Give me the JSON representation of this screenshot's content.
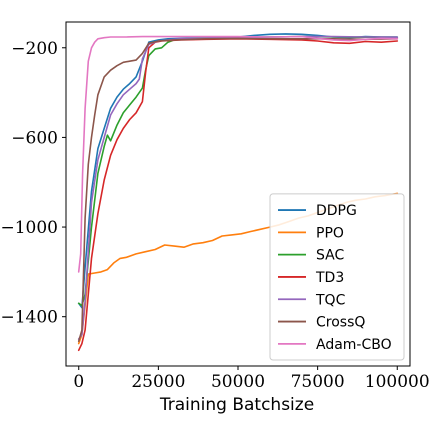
{
  "chart_data": {
    "type": "line",
    "title": "",
    "xlabel": "Training Batchsize",
    "ylabel": "",
    "xlim": [
      -4000,
      104000
    ],
    "ylim": [
      -1620,
      -85
    ],
    "xticks": [
      0,
      25000,
      50000,
      75000,
      100000
    ],
    "xtick_labels": [
      "0",
      "25000",
      "50000",
      "75000",
      "100000"
    ],
    "yticks": [
      -200,
      -600,
      -1000,
      -1400
    ],
    "ytick_labels": [
      "−200",
      "−600",
      "−1000",
      "−1400"
    ],
    "grid": false,
    "legend_position": "lower-right",
    "series": [
      {
        "name": "DDPG",
        "color": "#1f77b4",
        "x": [
          0,
          1000,
          2000,
          4000,
          6000,
          8000,
          10000,
          12000,
          14000,
          16000,
          18000,
          20000,
          22000,
          25000,
          28000,
          32000,
          40000,
          50000,
          55000,
          60000,
          65000,
          70000,
          75000,
          80000,
          85000,
          90000,
          95000,
          100000
        ],
        "y": [
          -1340,
          -1360,
          -1180,
          -840,
          -650,
          -560,
          -470,
          -420,
          -385,
          -360,
          -330,
          -260,
          -175,
          -165,
          -160,
          -158,
          -156,
          -152,
          -145,
          -140,
          -138,
          -140,
          -145,
          -152,
          -155,
          -150,
          -152,
          -152
        ]
      },
      {
        "name": "PPO",
        "color": "#ff7f0e",
        "x": [
          0,
          1000,
          2000,
          3000,
          5000,
          7000,
          9000,
          11000,
          13000,
          15000,
          18000,
          21000,
          24000,
          27000,
          30000,
          33000,
          36000,
          39000,
          42000,
          45000,
          48000,
          51000,
          54000,
          57000,
          60000,
          63000,
          66000,
          69000,
          72000,
          75000,
          78000,
          81000,
          84000,
          87000,
          90000,
          93000,
          96000,
          100000
        ],
        "y": [
          -1520,
          -1480,
          -1350,
          -1210,
          -1205,
          -1200,
          -1190,
          -1160,
          -1140,
          -1135,
          -1120,
          -1110,
          -1100,
          -1080,
          -1085,
          -1090,
          -1075,
          -1070,
          -1060,
          -1040,
          -1035,
          -1030,
          -1020,
          -1010,
          -1000,
          -990,
          -975,
          -960,
          -950,
          -935,
          -920,
          -905,
          -890,
          -880,
          -875,
          -865,
          -860,
          -850
        ]
      },
      {
        "name": "SAC",
        "color": "#2ca02c",
        "x": [
          0,
          1000,
          2000,
          4000,
          6000,
          8000,
          9000,
          10000,
          12000,
          14000,
          16000,
          18000,
          20000,
          21000,
          22000,
          24000,
          26000,
          28000,
          30000,
          35000,
          40000,
          50000,
          60000,
          70000,
          80000,
          90000,
          100000
        ],
        "y": [
          -1340,
          -1350,
          -1300,
          -1000,
          -760,
          -640,
          -590,
          -615,
          -545,
          -490,
          -455,
          -420,
          -380,
          -300,
          -235,
          -205,
          -200,
          -175,
          -165,
          -160,
          -158,
          -155,
          -152,
          -150,
          -152,
          -153,
          -153
        ]
      },
      {
        "name": "TD3",
        "color": "#d62728",
        "x": [
          0,
          1000,
          2000,
          4000,
          6000,
          8000,
          10000,
          12000,
          14000,
          16000,
          18000,
          20000,
          21000,
          22000,
          24000,
          26000,
          28000,
          32000,
          40000,
          50000,
          60000,
          70000,
          75000,
          80000,
          85000,
          90000,
          95000,
          100000
        ],
        "y": [
          -1550,
          -1520,
          -1460,
          -1140,
          -940,
          -790,
          -680,
          -610,
          -560,
          -520,
          -490,
          -440,
          -310,
          -200,
          -175,
          -170,
          -168,
          -165,
          -162,
          -160,
          -162,
          -165,
          -170,
          -178,
          -180,
          -172,
          -175,
          -170
        ]
      },
      {
        "name": "TQC",
        "color": "#9467bd",
        "x": [
          0,
          1000,
          2000,
          4000,
          6000,
          8000,
          10000,
          12000,
          14000,
          16000,
          18000,
          19000,
          20000,
          22000,
          25000,
          28000,
          32000,
          40000,
          50000,
          60000,
          70000,
          80000,
          90000,
          100000
        ],
        "y": [
          -1500,
          -1480,
          -1330,
          -890,
          -700,
          -600,
          -500,
          -450,
          -410,
          -385,
          -360,
          -340,
          -250,
          -185,
          -170,
          -165,
          -160,
          -158,
          -155,
          -152,
          -150,
          -150,
          -152,
          -153
        ]
      },
      {
        "name": "CrossQ",
        "color": "#8c564b",
        "x": [
          0,
          1000,
          2000,
          3000,
          4000,
          5000,
          6000,
          8000,
          10000,
          12000,
          14000,
          16000,
          18000,
          20000,
          22000,
          25000,
          30000,
          40000,
          50000,
          60000,
          70000,
          80000,
          90000,
          100000
        ],
        "y": [
          -1510,
          -1460,
          -960,
          -720,
          -600,
          -500,
          -410,
          -330,
          -300,
          -280,
          -265,
          -260,
          -255,
          -225,
          -180,
          -170,
          -165,
          -160,
          -158,
          -160,
          -160,
          -160,
          -162,
          -160
        ]
      },
      {
        "name": "Adam-CBO",
        "color": "#e377c2",
        "x": [
          0,
          600,
          1200,
          2000,
          3000,
          4000,
          5000,
          6000,
          8000,
          10000,
          15000,
          20000,
          30000,
          40000,
          50000,
          60000,
          70000,
          75000,
          80000,
          85000,
          90000,
          95000,
          100000
        ],
        "y": [
          -1200,
          -1120,
          -760,
          -470,
          -260,
          -200,
          -175,
          -160,
          -155,
          -152,
          -152,
          -150,
          -150,
          -150,
          -150,
          -152,
          -150,
          -158,
          -165,
          -168,
          -162,
          -158,
          -160
        ]
      }
    ]
  }
}
